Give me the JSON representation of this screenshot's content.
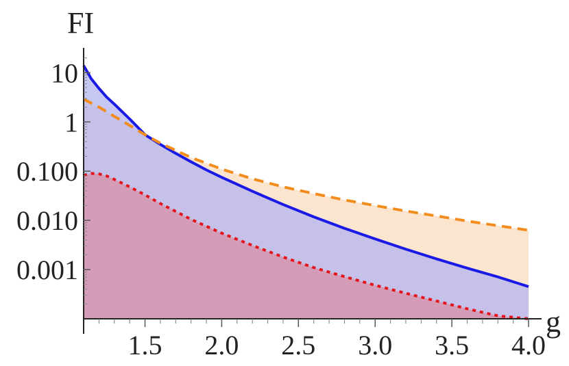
{
  "chart_data": {
    "type": "area",
    "xlabel": "g",
    "ylabel": "FI",
    "xlim": [
      1.1,
      4.0
    ],
    "ylim": [
      0.0001,
      30
    ],
    "y_scale": "log",
    "grid": false,
    "x_ticks": [
      1.5,
      2.0,
      2.5,
      3.0,
      3.5,
      4.0
    ],
    "x_tick_labels": [
      "1.5",
      "2.0",
      "2.5",
      "3.0",
      "3.5",
      "4.0"
    ],
    "y_ticks": [
      0.001,
      0.01,
      0.1,
      1,
      10
    ],
    "y_tick_labels": [
      "0.001",
      "0.010",
      "0.100",
      "1",
      "10"
    ],
    "series": [
      {
        "style": "solid",
        "color": "#1a1ae6",
        "fill": "#b4b4f0",
        "x": [
          1.1,
          1.15,
          1.2,
          1.25,
          1.3,
          1.4,
          1.5,
          1.6,
          1.7,
          1.8,
          1.9,
          2.0,
          2.2,
          2.4,
          2.6,
          2.8,
          3.0,
          3.2,
          3.4,
          3.6,
          3.8,
          4.0
        ],
        "y": [
          14,
          7.5,
          4.8,
          3.2,
          2.3,
          1.15,
          0.55,
          0.35,
          0.23,
          0.155,
          0.106,
          0.075,
          0.039,
          0.021,
          0.0118,
          0.0069,
          0.0042,
          0.0026,
          0.00165,
          0.00107,
          0.00071,
          0.00045
        ]
      },
      {
        "style": "dashed",
        "color": "#f28c1c",
        "fill": "#fbdcbd",
        "x": [
          1.1,
          1.2,
          1.3,
          1.4,
          1.5,
          1.6,
          1.8,
          2.0,
          2.2,
          2.4,
          2.6,
          2.8,
          3.0,
          3.2,
          3.4,
          3.6,
          3.8,
          4.0
        ],
        "y": [
          2.9,
          2.0,
          1.3,
          0.85,
          0.55,
          0.37,
          0.19,
          0.11,
          0.07,
          0.048,
          0.035,
          0.026,
          0.02,
          0.0155,
          0.0123,
          0.0097,
          0.0078,
          0.0063
        ]
      },
      {
        "style": "dotted",
        "color": "#e3141b",
        "fill": "#d88fa6",
        "x": [
          1.1,
          1.15,
          1.2,
          1.25,
          1.3,
          1.4,
          1.5,
          1.6,
          1.8,
          2.0,
          2.2,
          2.4,
          2.6,
          2.8,
          3.0,
          3.2,
          3.4,
          3.6,
          3.8,
          4.0
        ],
        "y": [
          0.082,
          0.09,
          0.088,
          0.08,
          0.068,
          0.048,
          0.033,
          0.022,
          0.0105,
          0.0055,
          0.0031,
          0.0018,
          0.0011,
          0.00072,
          0.00048,
          0.00033,
          0.00023,
          0.00016,
          0.000115,
          0.0001
        ]
      }
    ]
  }
}
